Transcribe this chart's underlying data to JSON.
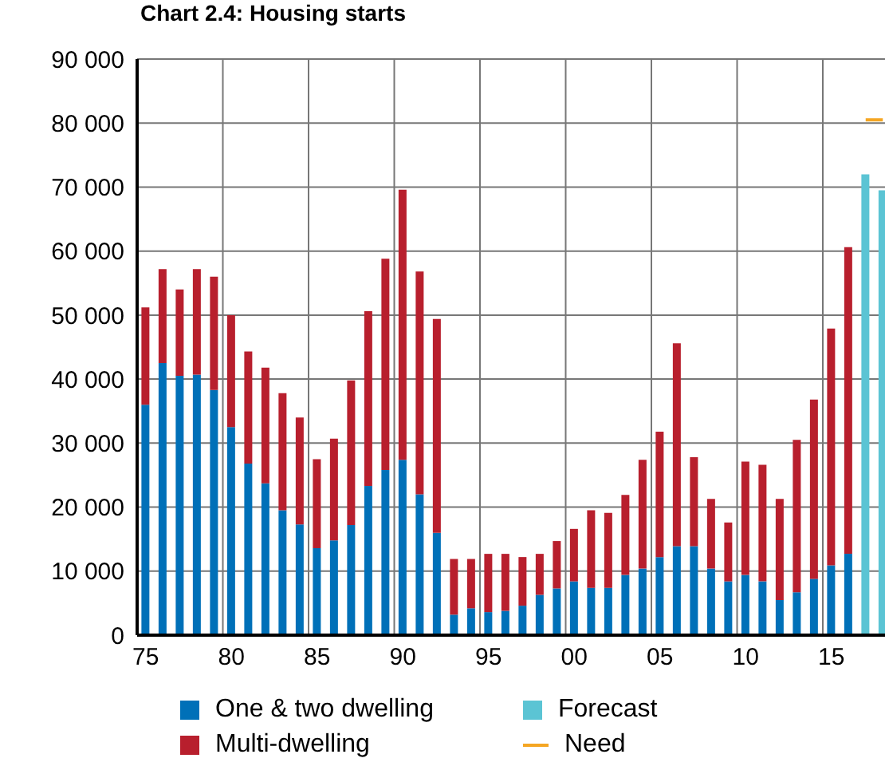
{
  "chart_data": {
    "type": "bar",
    "title": "Chart 2.4: Housing starts",
    "stacked": true,
    "grid": true,
    "legend": "bottom",
    "categories": [
      "75",
      null,
      null,
      null,
      null,
      "80",
      null,
      null,
      null,
      null,
      "85",
      null,
      null,
      null,
      null,
      "90",
      null,
      null,
      null,
      null,
      "95",
      null,
      null,
      null,
      null,
      "00",
      null,
      null,
      null,
      null,
      "05",
      null,
      null,
      null,
      null,
      "10",
      null,
      null,
      null,
      null,
      "15",
      null,
      null,
      null
    ],
    "ylim": [
      0,
      90000
    ],
    "yticks": [
      {
        "value": 0,
        "label": "0"
      },
      {
        "value": 10000,
        "label": "10 000"
      },
      {
        "value": 20000,
        "label": "20 000"
      },
      {
        "value": 30000,
        "label": "30 000"
      },
      {
        "value": 40000,
        "label": "40 000"
      },
      {
        "value": 50000,
        "label": "50 000"
      },
      {
        "value": 60000,
        "label": "60 000"
      },
      {
        "value": 70000,
        "label": "70 000"
      },
      {
        "value": 80000,
        "label": "80 000"
      },
      {
        "value": 90000,
        "label": "90 000"
      }
    ],
    "series": [
      {
        "name": "One & two  dwelling",
        "color": "#0070b8",
        "values": [
          36000,
          42500,
          40500,
          40700,
          38300,
          32500,
          26800,
          23700,
          19500,
          17300,
          13600,
          14800,
          17200,
          23300,
          25800,
          27400,
          22000,
          16000,
          3200,
          4200,
          3600,
          3800,
          4600,
          6300,
          7300,
          8400,
          7400,
          7400,
          9400,
          10400,
          12200,
          13900,
          13900,
          10400,
          8400,
          9400,
          8400,
          5500,
          6700,
          8800,
          10900,
          12700,
          null,
          null
        ]
      },
      {
        "name": "Multi-dwelling",
        "color": "#b81f2d",
        "values": [
          15200,
          14700,
          13500,
          16500,
          17700,
          17500,
          17500,
          18100,
          18300,
          16700,
          13900,
          15900,
          22600,
          27300,
          33000,
          42200,
          34800,
          33400,
          8700,
          7700,
          9100,
          8900,
          7600,
          6400,
          7400,
          8200,
          12100,
          11700,
          12500,
          17000,
          19600,
          31700,
          13900,
          10900,
          9200,
          17700,
          18200,
          15800,
          23800,
          28000,
          37000,
          47900,
          null,
          null
        ]
      },
      {
        "name": "Forecast",
        "color": "#5bc4d4",
        "values": [
          null,
          null,
          null,
          null,
          null,
          null,
          null,
          null,
          null,
          null,
          null,
          null,
          null,
          null,
          null,
          null,
          null,
          null,
          null,
          null,
          null,
          null,
          null,
          null,
          null,
          null,
          null,
          null,
          null,
          null,
          null,
          null,
          null,
          null,
          null,
          null,
          null,
          null,
          null,
          null,
          null,
          null,
          72000,
          69500
        ]
      },
      {
        "name": "Need",
        "type": "line",
        "color": "#f5a623",
        "values": [
          null,
          null,
          null,
          null,
          null,
          null,
          null,
          null,
          null,
          null,
          null,
          null,
          null,
          null,
          null,
          null,
          null,
          null,
          null,
          null,
          null,
          null,
          null,
          null,
          null,
          null,
          null,
          null,
          null,
          null,
          null,
          null,
          null,
          null,
          null,
          null,
          null,
          null,
          null,
          null,
          null,
          null,
          80500,
          80500
        ]
      }
    ]
  }
}
